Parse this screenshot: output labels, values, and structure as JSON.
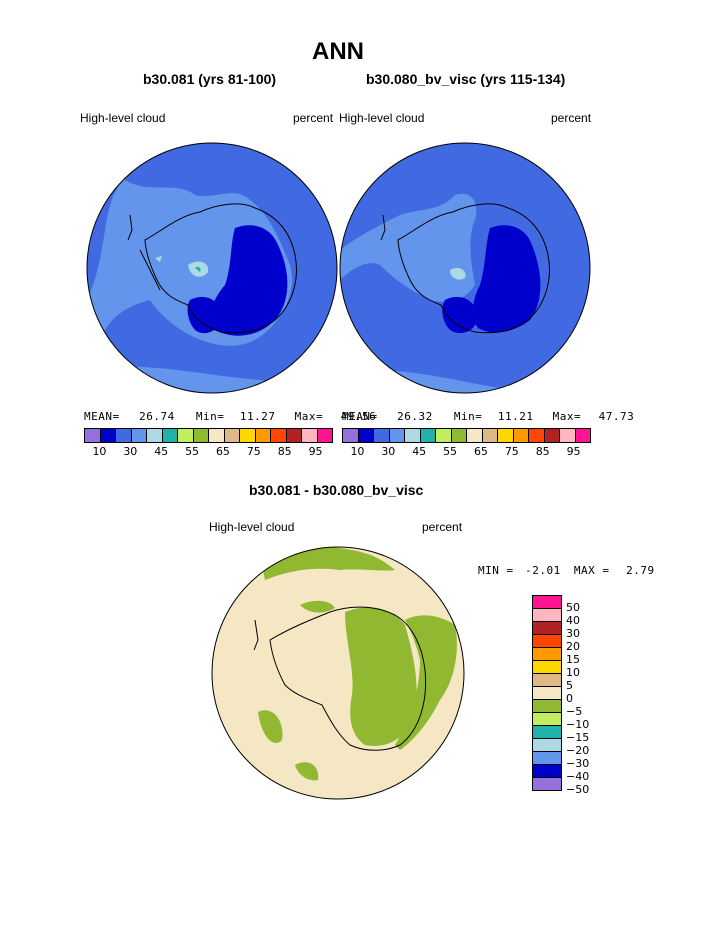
{
  "page": {
    "title": "ANN",
    "left_panel": {
      "case": "b30.081 (yrs 81-100)",
      "field": "High-level cloud",
      "units": "percent",
      "stats": {
        "mean_label": "MEAN=",
        "mean": "26.74",
        "min_label": "Min=",
        "min": "11.27",
        "max_label": "Max=",
        "max": "49.56"
      }
    },
    "right_panel": {
      "case": "b30.080_bv_visc (yrs 115-134)",
      "field": "High-level cloud",
      "units": "percent",
      "stats": {
        "mean_label": "MEAN=",
        "mean": "26.32",
        "min_label": "Min=",
        "min": "11.21",
        "max_label": "Max=",
        "max": "47.73"
      }
    },
    "diff_panel": {
      "case": "b30.081 - b30.080_bv_visc",
      "field": "High-level cloud",
      "units": "percent",
      "stats": {
        "min_label": "MIN =",
        "min": "-2.01",
        "max_label": "MAX =",
        "max": "2.79"
      }
    }
  },
  "colorbar_abs": {
    "colors": [
      "#9370db",
      "#0000cd",
      "#4169e1",
      "#6495ed",
      "#add8e6",
      "#20b2aa",
      "#c0ee60",
      "#90b830",
      "#f5e6c4",
      "#deb887",
      "#ffd700",
      "#ff9900",
      "#ff4500",
      "#b22222",
      "#ffb6c1",
      "#ff1493"
    ],
    "tick_labels": [
      "10",
      "30",
      "45",
      "55",
      "65",
      "75",
      "85",
      "95"
    ]
  },
  "colorbar_diff": {
    "colors_top_to_bottom": [
      "#ff1493",
      "#ffb6c1",
      "#b22222",
      "#ff4500",
      "#ff9900",
      "#ffd700",
      "#deb887",
      "#f5e6c4",
      "#90b830",
      "#c0ee60",
      "#20b2aa",
      "#add8e6",
      "#6495ed",
      "#0000cd",
      "#9370db"
    ],
    "tick_labels": [
      "50",
      "40",
      "30",
      "20",
      "15",
      "10",
      "5",
      "0",
      "−5",
      "−10",
      "−15",
      "−20",
      "−30",
      "−40",
      "−50"
    ]
  },
  "map_colors": {
    "ocean_blue": "#4169e1",
    "light_blue": "#6495ed",
    "dark_blue": "#0000cd",
    "pale_blue": "#add8e6",
    "teal": "#20b2aa",
    "diff_background": "#f5e6c4",
    "diff_negative": "#90b830"
  }
}
